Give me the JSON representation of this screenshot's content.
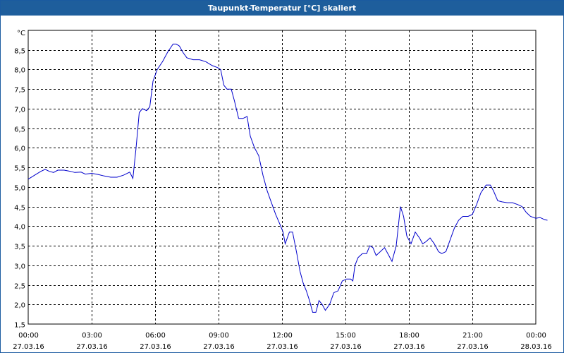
{
  "window": {
    "title": "Taupunkt-Temperatur [°C] skaliert"
  },
  "colors": {
    "line": "#0000cc",
    "titlebar": "#1e5e9c",
    "grid": "#000000"
  },
  "chart_data": {
    "type": "line",
    "title": "Taupunkt-Temperatur [°C] skaliert",
    "ylabel": "°C",
    "xlabel": "",
    "ylim": [
      1.5,
      9.0
    ],
    "xlim": [
      0,
      24
    ],
    "grid": true,
    "x_ticks": [
      {
        "hour": 0,
        "time": "00:00",
        "date": "27.03.16"
      },
      {
        "hour": 3,
        "time": "03:00",
        "date": "27.03.16"
      },
      {
        "hour": 6,
        "time": "06:00",
        "date": "27.03.16"
      },
      {
        "hour": 9,
        "time": "09:00",
        "date": "27.03.16"
      },
      {
        "hour": 12,
        "time": "12:00",
        "date": "27.03.16"
      },
      {
        "hour": 15,
        "time": "15:00",
        "date": "27.03.16"
      },
      {
        "hour": 18,
        "time": "18:00",
        "date": "27.03.16"
      },
      {
        "hour": 21,
        "time": "21:00",
        "date": "27.03.16"
      },
      {
        "hour": 24,
        "time": "00:00",
        "date": "28.03.16"
      }
    ],
    "y_ticks": [
      {
        "value": 1.5,
        "label": "1,5"
      },
      {
        "value": 2.0,
        "label": "2,0"
      },
      {
        "value": 2.5,
        "label": "2,5"
      },
      {
        "value": 3.0,
        "label": "3,0"
      },
      {
        "value": 3.5,
        "label": "3,5"
      },
      {
        "value": 4.0,
        "label": "4,0"
      },
      {
        "value": 4.5,
        "label": "4,5"
      },
      {
        "value": 5.0,
        "label": "5,0"
      },
      {
        "value": 5.5,
        "label": "5,5"
      },
      {
        "value": 6.0,
        "label": "6,0"
      },
      {
        "value": 6.5,
        "label": "6,5"
      },
      {
        "value": 7.0,
        "label": "7,0"
      },
      {
        "value": 7.5,
        "label": "7,5"
      },
      {
        "value": 8.0,
        "label": "8,0"
      },
      {
        "value": 8.5,
        "label": "8,5"
      }
    ],
    "series": [
      {
        "points": [
          [
            0.0,
            5.2
          ],
          [
            0.3,
            5.3
          ],
          [
            0.6,
            5.4
          ],
          [
            0.8,
            5.45
          ],
          [
            1.0,
            5.4
          ],
          [
            1.2,
            5.37
          ],
          [
            1.4,
            5.43
          ],
          [
            1.7,
            5.43
          ],
          [
            2.0,
            5.4
          ],
          [
            2.2,
            5.37
          ],
          [
            2.5,
            5.38
          ],
          [
            2.7,
            5.33
          ],
          [
            3.0,
            5.35
          ],
          [
            3.3,
            5.32
          ],
          [
            3.6,
            5.28
          ],
          [
            3.9,
            5.25
          ],
          [
            4.2,
            5.25
          ],
          [
            4.5,
            5.3
          ],
          [
            4.8,
            5.38
          ],
          [
            4.95,
            5.22
          ],
          [
            5.1,
            6.0
          ],
          [
            5.25,
            6.9
          ],
          [
            5.4,
            7.0
          ],
          [
            5.6,
            6.95
          ],
          [
            5.75,
            7.05
          ],
          [
            5.9,
            7.7
          ],
          [
            6.1,
            8.0
          ],
          [
            6.35,
            8.2
          ],
          [
            6.6,
            8.45
          ],
          [
            6.85,
            8.65
          ],
          [
            7.0,
            8.65
          ],
          [
            7.15,
            8.6
          ],
          [
            7.3,
            8.45
          ],
          [
            7.5,
            8.3
          ],
          [
            7.8,
            8.25
          ],
          [
            8.1,
            8.25
          ],
          [
            8.4,
            8.2
          ],
          [
            8.7,
            8.1
          ],
          [
            8.95,
            8.05
          ],
          [
            9.1,
            8.0
          ],
          [
            9.25,
            7.6
          ],
          [
            9.4,
            7.5
          ],
          [
            9.6,
            7.5
          ],
          [
            9.75,
            7.2
          ],
          [
            9.95,
            6.75
          ],
          [
            10.15,
            6.75
          ],
          [
            10.35,
            6.8
          ],
          [
            10.5,
            6.3
          ],
          [
            10.7,
            6.0
          ],
          [
            10.9,
            5.8
          ],
          [
            11.1,
            5.3
          ],
          [
            11.3,
            4.9
          ],
          [
            11.5,
            4.6
          ],
          [
            11.7,
            4.3
          ],
          [
            11.9,
            4.05
          ],
          [
            12.05,
            3.85
          ],
          [
            12.15,
            3.55
          ],
          [
            12.35,
            3.85
          ],
          [
            12.5,
            3.85
          ],
          [
            12.7,
            3.3
          ],
          [
            12.85,
            2.85
          ],
          [
            13.0,
            2.55
          ],
          [
            13.15,
            2.35
          ],
          [
            13.3,
            2.1
          ],
          [
            13.45,
            1.8
          ],
          [
            13.6,
            1.8
          ],
          [
            13.75,
            2.1
          ],
          [
            13.9,
            2.0
          ],
          [
            14.05,
            1.85
          ],
          [
            14.25,
            2.0
          ],
          [
            14.45,
            2.3
          ],
          [
            14.65,
            2.35
          ],
          [
            14.85,
            2.6
          ],
          [
            15.05,
            2.65
          ],
          [
            15.25,
            2.65
          ],
          [
            15.35,
            2.6
          ],
          [
            15.45,
            3.0
          ],
          [
            15.6,
            3.2
          ],
          [
            15.8,
            3.3
          ],
          [
            16.0,
            3.3
          ],
          [
            16.15,
            3.5
          ],
          [
            16.3,
            3.45
          ],
          [
            16.45,
            3.25
          ],
          [
            16.65,
            3.35
          ],
          [
            16.85,
            3.45
          ],
          [
            17.05,
            3.25
          ],
          [
            17.2,
            3.1
          ],
          [
            17.4,
            3.5
          ],
          [
            17.6,
            4.5
          ],
          [
            17.75,
            4.25
          ],
          [
            17.9,
            3.75
          ],
          [
            18.1,
            3.55
          ],
          [
            18.3,
            3.85
          ],
          [
            18.5,
            3.7
          ],
          [
            18.65,
            3.55
          ],
          [
            18.8,
            3.6
          ],
          [
            19.0,
            3.7
          ],
          [
            19.2,
            3.55
          ],
          [
            19.4,
            3.35
          ],
          [
            19.55,
            3.3
          ],
          [
            19.75,
            3.35
          ],
          [
            19.95,
            3.65
          ],
          [
            20.15,
            3.95
          ],
          [
            20.35,
            4.15
          ],
          [
            20.55,
            4.25
          ],
          [
            20.8,
            4.25
          ],
          [
            21.0,
            4.3
          ],
          [
            21.2,
            4.55
          ],
          [
            21.4,
            4.85
          ],
          [
            21.65,
            5.05
          ],
          [
            21.85,
            5.05
          ],
          [
            22.0,
            4.9
          ],
          [
            22.2,
            4.65
          ],
          [
            22.4,
            4.62
          ],
          [
            22.65,
            4.6
          ],
          [
            22.9,
            4.6
          ],
          [
            23.15,
            4.55
          ],
          [
            23.35,
            4.5
          ],
          [
            23.55,
            4.35
          ],
          [
            23.75,
            4.25
          ],
          [
            24.0,
            4.2
          ],
          [
            24.2,
            4.22
          ],
          [
            24.4,
            4.17
          ],
          [
            24.55,
            4.15
          ]
        ]
      }
    ]
  }
}
